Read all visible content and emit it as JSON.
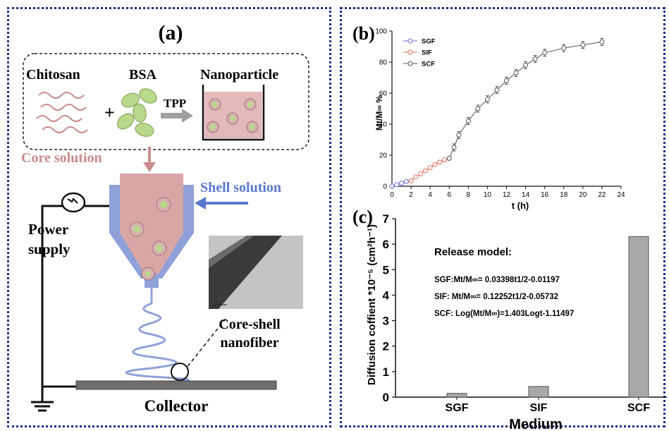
{
  "panel_a": {
    "label": "(a)",
    "chitosan": "Chitosan",
    "bsa": "BSA",
    "plus": "+",
    "tpp": "TPP",
    "nanoparticle": "Nanoparticle",
    "core_solution": "Core solution",
    "shell_solution": "Shell solution",
    "power": "Power",
    "supply": "supply",
    "core_shell": "Core-shell",
    "nanofiber": "nanofiber",
    "collector": "Collector",
    "colors": {
      "core": "#d9a6a6",
      "shell": "#8fa1d8",
      "arrow_core": "#c98b8b",
      "arrow_shell": "#5b78d0",
      "green": "#b9d98a"
    }
  },
  "chart_data": [
    {
      "panel_label": "(b)",
      "type": "line",
      "xlabel": "t (h)",
      "ylabel": "Mt/M∞ %",
      "xlim": [
        0,
        24
      ],
      "ylim": [
        0,
        100
      ],
      "xticks": [
        "0",
        "2",
        "4",
        "6",
        "8",
        "10",
        "12",
        "14",
        "16",
        "18",
        "20",
        "22",
        "24"
      ],
      "yticks": [
        "0",
        "20",
        "40",
        "60",
        "80",
        "100"
      ],
      "legend_position": "top-left",
      "series": [
        {
          "name": "SGF",
          "color": "#6f6fe0",
          "x": [
            0,
            0.5,
            1,
            1.5,
            2
          ],
          "y": [
            0,
            1,
            2,
            3,
            3.5
          ]
        },
        {
          "name": "SIF",
          "color": "#e06a5a",
          "x": [
            2,
            2.5,
            3,
            3.5,
            4,
            4.5,
            5,
            5.5,
            6
          ],
          "y": [
            3.5,
            6,
            8,
            10,
            12,
            14,
            15.5,
            17,
            18
          ]
        },
        {
          "name": "SCF",
          "color": "#555555",
          "x": [
            6,
            6.5,
            7,
            8,
            9,
            10,
            11,
            12,
            13,
            14,
            15,
            16,
            18,
            20,
            22
          ],
          "y": [
            18,
            25,
            33,
            42,
            50,
            56,
            62,
            68,
            73,
            78,
            82,
            86,
            89,
            91,
            93
          ]
        }
      ]
    },
    {
      "panel_label": "(c)",
      "type": "bar",
      "xlabel": "Medium",
      "ylabel": "Diffusion coffient *10⁻⁵ (cm²h⁻¹)",
      "categories": [
        "SGF",
        "SIF",
        "SCF"
      ],
      "values": [
        0.15,
        0.42,
        6.3
      ],
      "ylim": [
        0,
        7
      ],
      "yticks": [
        "0",
        "1",
        "2",
        "3",
        "4",
        "5",
        "6",
        "7"
      ],
      "bar_color": "#a8a8a8",
      "annotation": {
        "title": "Release model:",
        "line1": "SGF:Mt/M∞= 0.03398t1/2-0.01197",
        "line2": "SIF: Mt/M∞= 0.12252t1/2-0.05732",
        "line3": "SCF: Log(Mt/M∞)=1.403Logt-1.11497"
      }
    }
  ]
}
